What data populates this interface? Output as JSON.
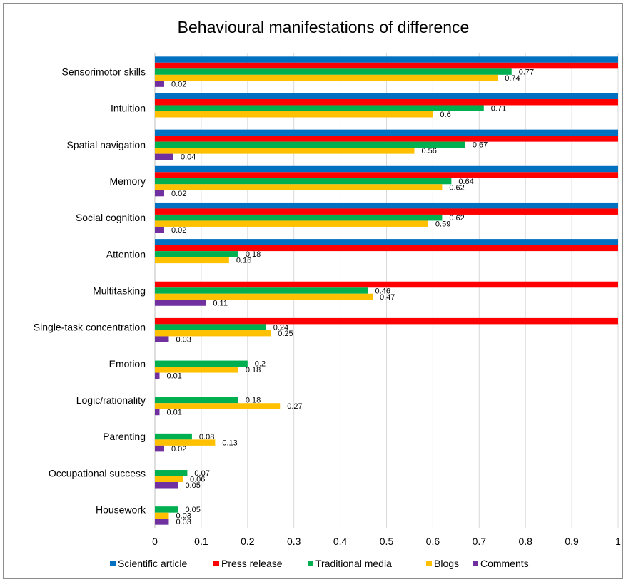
{
  "chart_data": {
    "type": "bar",
    "orientation": "horizontal",
    "title": "Behavioural manifestations of difference",
    "xlabel": "",
    "ylabel": "",
    "xlim": [
      0,
      1
    ],
    "xticks": [
      "0",
      "0.1",
      "0.2",
      "0.3",
      "0.4",
      "0.5",
      "0.6",
      "0.7",
      "0.8",
      "0.9",
      "1"
    ],
    "grid": true,
    "legend_position": "bottom",
    "categories": [
      "Sensorimotor skills",
      "Intuition",
      "Spatial navigation",
      "Memory",
      "Social cognition",
      "Attention",
      "Multitasking",
      "Single-task concentration",
      "Emotion",
      "Logic/rationality",
      "Parenting",
      "Occupational success",
      "Housework"
    ],
    "series": [
      {
        "name": "Scientific article",
        "color": "#0070C0",
        "values": [
          1,
          1,
          1,
          1,
          1,
          1,
          0,
          0,
          0,
          0,
          0,
          0,
          0
        ],
        "labels": [
          "",
          "",
          "",
          "",
          "",
          "",
          "",
          "",
          "",
          "",
          "",
          "",
          ""
        ]
      },
      {
        "name": "Press release",
        "color": "#FF0000",
        "values": [
          1,
          1,
          1,
          1,
          1,
          1,
          1,
          1,
          0,
          0,
          0,
          0,
          0
        ],
        "labels": [
          "",
          "",
          "",
          "",
          "",
          "",
          "",
          "",
          "",
          "",
          "",
          "",
          ""
        ]
      },
      {
        "name": "Traditional media",
        "color": "#00B050",
        "values": [
          0.77,
          0.71,
          0.67,
          0.64,
          0.62,
          0.18,
          0.46,
          0.24,
          0.2,
          0.18,
          0.08,
          0.07,
          0.05
        ],
        "labels": [
          "0.77",
          "0.71",
          "0.67",
          "0.64",
          "0.62",
          "0.18",
          "0.46",
          "0.24",
          "0.2",
          "0.18",
          "0.08",
          "0.07",
          "0.05"
        ]
      },
      {
        "name": "Blogs",
        "color": "#FFC000",
        "values": [
          0.74,
          0.6,
          0.56,
          0.62,
          0.59,
          0.16,
          0.47,
          0.25,
          0.18,
          0.27,
          0.13,
          0.06,
          0.03
        ],
        "labels": [
          "0.74",
          "0.6",
          "0.56",
          "0.62",
          "0.59",
          "0.16",
          "0.47",
          "0.25",
          "0.18",
          "0.27",
          "0.13",
          "0.06",
          "0.03"
        ]
      },
      {
        "name": "Comments",
        "color": "#7030A0",
        "values": [
          0.02,
          0,
          0.04,
          0.02,
          0.02,
          0,
          0.11,
          0.03,
          0.01,
          0.01,
          0.02,
          0.05,
          0.03
        ],
        "labels": [
          "0.02",
          "",
          "0.04",
          "0.02",
          "0.02",
          "",
          "0.11",
          "0.03",
          "0.01",
          "0.01",
          "0.02",
          "0.05",
          "0.03"
        ]
      }
    ]
  }
}
